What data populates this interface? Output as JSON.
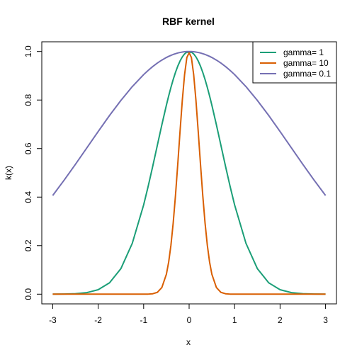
{
  "chart_data": {
    "type": "line",
    "title": "RBF kernel",
    "xlabel": "x",
    "ylabel": "k(x)",
    "xlim": [
      -3.24,
      3.24
    ],
    "ylim": [
      -0.04,
      1.04
    ],
    "x_ticks": [
      -3,
      -2,
      -1,
      0,
      1,
      2,
      3
    ],
    "x_tick_labels": [
      "-3",
      "-2",
      "-1",
      "0",
      "1",
      "2",
      "3"
    ],
    "y_ticks": [
      0.0,
      0.2,
      0.4,
      0.6,
      0.8,
      1.0
    ],
    "y_tick_labels": [
      "0.0",
      "0.2",
      "0.4",
      "0.6",
      "0.8",
      "1.0"
    ],
    "grid": false,
    "legend_position": "top-right",
    "x": [
      -3.0,
      -2.75,
      -2.5,
      -2.25,
      -2.0,
      -1.75,
      -1.5,
      -1.25,
      -1.0,
      -0.9,
      -0.8,
      -0.7,
      -0.6,
      -0.5,
      -0.45,
      -0.4,
      -0.35,
      -0.3,
      -0.25,
      -0.2,
      -0.15,
      -0.1,
      -0.05,
      0.0,
      0.05,
      0.1,
      0.15,
      0.2,
      0.25,
      0.3,
      0.35,
      0.4,
      0.45,
      0.5,
      0.6,
      0.7,
      0.8,
      0.9,
      1.0,
      1.25,
      1.5,
      1.75,
      2.0,
      2.25,
      2.5,
      2.75,
      3.0
    ],
    "series": [
      {
        "name": "gamma= 1",
        "color": "#1b9e77",
        "values": [
          0.0001,
          0.0005,
          0.0019,
          0.0063,
          0.0183,
          0.0468,
          0.1054,
          0.2096,
          0.3679,
          0.4449,
          0.5273,
          0.6126,
          0.6977,
          0.7788,
          0.8167,
          0.8521,
          0.8847,
          0.9139,
          0.9394,
          0.9608,
          0.9778,
          0.99,
          0.9975,
          0.995,
          0.9975,
          0.99,
          0.9778,
          0.9608,
          0.9394,
          0.9139,
          0.8847,
          0.8521,
          0.8167,
          0.7788,
          0.6977,
          0.6126,
          0.5273,
          0.4449,
          0.3679,
          0.2096,
          0.1054,
          0.0468,
          0.0183,
          0.0063,
          0.0019,
          0.0005,
          0.0001
        ]
      },
      {
        "name": "gamma= 10",
        "color": "#d95f02",
        "values": [
          0,
          0,
          0,
          0,
          0,
          0,
          0,
          0,
          0.0,
          0.0003,
          0.0017,
          0.0074,
          0.0273,
          0.0821,
          0.132,
          0.2019,
          0.2938,
          0.4066,
          0.5353,
          0.6703,
          0.7985,
          0.9048,
          0.9753,
          0.995,
          0.9753,
          0.9048,
          0.7985,
          0.6703,
          0.5353,
          0.4066,
          0.2938,
          0.2019,
          0.132,
          0.0821,
          0.0273,
          0.0074,
          0.0017,
          0.0003,
          0.0,
          0,
          0,
          0,
          0,
          0,
          0,
          0,
          0
        ]
      },
      {
        "name": "gamma= 0.1",
        "color": "#7570b3",
        "values": [
          0.4066,
          0.4695,
          0.5353,
          0.6027,
          0.6703,
          0.7364,
          0.7985,
          0.8553,
          0.9048,
          0.9222,
          0.938,
          0.9522,
          0.9646,
          0.9753,
          0.98,
          0.9841,
          0.9878,
          0.991,
          0.9938,
          0.996,
          0.9978,
          0.999,
          0.9998,
          1.0,
          0.9998,
          0.999,
          0.9978,
          0.996,
          0.9938,
          0.991,
          0.9878,
          0.9841,
          0.98,
          0.9753,
          0.9646,
          0.9522,
          0.938,
          0.9222,
          0.9048,
          0.8553,
          0.7985,
          0.7364,
          0.6703,
          0.6027,
          0.5353,
          0.4695,
          0.4066
        ]
      }
    ]
  }
}
